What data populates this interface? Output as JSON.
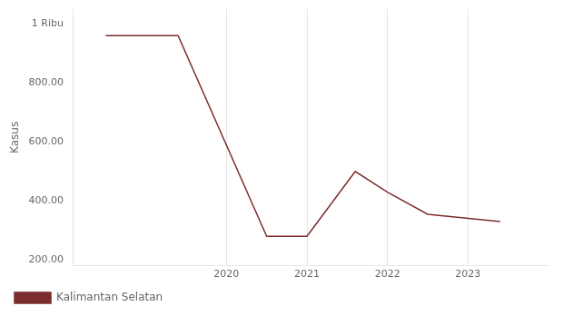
{
  "chart_data": {
    "type": "line",
    "ylabel": "Kasus",
    "x": [
      2018.5,
      2019.4,
      2020.5,
      2021.0,
      2021.6,
      2022.0,
      2022.5,
      2023.4
    ],
    "series": [
      {
        "name": "Kalimantan Selatan",
        "color": "#7B2D2D",
        "values": [
          960,
          960,
          280,
          280,
          500,
          430,
          355,
          330
        ]
      }
    ],
    "xlim": [
      2018.1,
      2024.0
    ],
    "xticks": [
      2020,
      2021,
      2022,
      2023
    ],
    "ylim": [
      180,
      1050
    ],
    "yticks": [
      {
        "value": 200,
        "label": "200.00"
      },
      {
        "value": 400,
        "label": "400.00"
      },
      {
        "value": 600,
        "label": "600.00"
      },
      {
        "value": 800,
        "label": "800.00"
      },
      {
        "value": 1000,
        "label": "1 Ribu"
      }
    ],
    "grid": "x",
    "legend": "bottom"
  }
}
